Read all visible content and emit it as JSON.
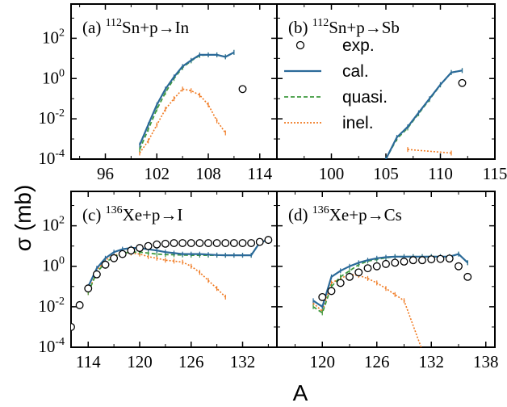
{
  "figure": {
    "ylabel": "σ (mb)",
    "xlabel": "A"
  },
  "legend": [
    {
      "key": "exp",
      "label": "exp."
    },
    {
      "key": "cal",
      "label": "cal."
    },
    {
      "key": "quasi",
      "label": "quasi."
    },
    {
      "key": "inel",
      "label": "inel."
    }
  ],
  "colors": {
    "cal": "#2b6a99",
    "quasi": "#3f9a3f",
    "inel": "#f07a22",
    "exp": "#000000"
  },
  "chart_data": [
    {
      "type": "line",
      "label": "(a)",
      "sup": "112",
      "title_rest": "Sn+p→In",
      "xlim": [
        92,
        116
      ],
      "ylog": true,
      "ylim_exp": [
        -4,
        3.7
      ],
      "xticks": [
        96,
        102,
        108,
        114
      ],
      "yticks": [
        -4,
        -2,
        0,
        2
      ],
      "series": {
        "exp": {
          "x": [
            112
          ],
          "y": [
            0.3
          ]
        },
        "cal": {
          "x": [
            100,
            101,
            102,
            103,
            104,
            105,
            106,
            107,
            108,
            109,
            110,
            111
          ],
          "y": [
            0.0005,
            0.005,
            0.05,
            0.3,
            1.2,
            4,
            8,
            15,
            15,
            15,
            12,
            20
          ]
        },
        "quasi": {
          "x": [
            100,
            101,
            102,
            103,
            104,
            105,
            106,
            107,
            108,
            109,
            110,
            111
          ],
          "y": [
            0.0003,
            0.003,
            0.03,
            0.2,
            1,
            3.5,
            7.5,
            14,
            15,
            15,
            12,
            20
          ]
        },
        "inel": {
          "x": [
            100,
            101,
            102,
            103,
            104,
            105,
            106,
            107,
            108,
            109,
            110
          ],
          "y": [
            0.0002,
            0.0008,
            0.005,
            0.03,
            0.1,
            0.3,
            0.25,
            0.15,
            0.05,
            0.008,
            0.002
          ]
        }
      }
    },
    {
      "type": "line",
      "label": "(b)",
      "sup": "112",
      "title_rest": "Sn+p→Sb",
      "xlim": [
        95,
        115
      ],
      "ylog": true,
      "ylim_exp": [
        -4,
        3.7
      ],
      "xticks": [
        100,
        105,
        110,
        115
      ],
      "yticks": [
        -4,
        -2,
        0,
        2
      ],
      "series": {
        "exp": {
          "x": [
            112
          ],
          "y": [
            0.6
          ]
        },
        "cal": {
          "x": [
            105,
            106,
            107,
            108,
            109,
            110,
            111,
            112
          ],
          "y": [
            0.0001,
            0.0012,
            0.004,
            0.02,
            0.1,
            0.5,
            2,
            2.5
          ]
        },
        "quasi": {
          "x": [
            105,
            106,
            107,
            108,
            109,
            110,
            111,
            112
          ],
          "y": [
            0.0001,
            0.001,
            0.0035,
            0.018,
            0.09,
            0.48,
            2,
            2.5
          ]
        },
        "inel": {
          "x": [
            107,
            111
          ],
          "y": [
            0.0003,
            0.0002
          ]
        }
      }
    },
    {
      "type": "line",
      "label": "(c)",
      "sup": "136",
      "title_rest": "Xe+p→I",
      "xlim": [
        112,
        136
      ],
      "ylog": true,
      "ylim_exp": [
        -4,
        3.7
      ],
      "xticks": [
        114,
        120,
        126,
        132
      ],
      "yticks": [
        -4,
        -2,
        0,
        2
      ],
      "series": {
        "exp": {
          "x": [
            112,
            113,
            114,
            115,
            116,
            117,
            118,
            119,
            120,
            121,
            122,
            123,
            124,
            125,
            126,
            127,
            128,
            129,
            130,
            131,
            132,
            133,
            134,
            135
          ],
          "y": [
            0.001,
            0.012,
            0.08,
            0.4,
            1.2,
            2.5,
            4,
            6,
            8,
            10,
            12,
            13,
            14,
            14,
            14,
            14,
            14,
            14,
            14,
            14,
            14,
            14,
            16,
            20
          ]
        },
        "cal": {
          "x": [
            114,
            115,
            116,
            117,
            118,
            119,
            120,
            121,
            122,
            123,
            124,
            125,
            126,
            127,
            128,
            129,
            130,
            131,
            132,
            133,
            134,
            135
          ],
          "y": [
            0.1,
            0.8,
            2.5,
            5,
            7,
            8,
            8,
            7,
            6,
            5,
            4.5,
            4,
            4,
            4,
            3.8,
            3.6,
            3.5,
            3.5,
            3.5,
            3.5,
            15,
            20
          ]
        },
        "quasi": {
          "x": [
            114,
            115,
            116,
            117,
            118,
            119,
            120,
            121,
            122,
            123,
            124,
            125,
            126,
            127,
            128,
            129,
            130,
            131,
            132,
            133,
            134,
            135
          ],
          "y": [
            0.05,
            0.5,
            1.5,
            3,
            4.5,
            5,
            5,
            4.5,
            4,
            3.8,
            3.7,
            3.6,
            3.5,
            3.5,
            3.5,
            3.5,
            3.5,
            3.5,
            3.5,
            3.5,
            15,
            20
          ]
        },
        "inel": {
          "x": [
            114,
            115,
            116,
            117,
            118,
            119,
            120,
            121,
            122,
            123,
            124,
            125,
            126,
            127,
            128,
            129,
            130
          ],
          "y": [
            0.05,
            0.6,
            2,
            3.5,
            4.5,
            4.5,
            4,
            3,
            2.5,
            2,
            1.8,
            1.6,
            1,
            0.5,
            0.2,
            0.08,
            0.03
          ]
        }
      }
    },
    {
      "type": "line",
      "label": "(d)",
      "sup": "136",
      "title_rest": "Xe+p→Cs",
      "xlim": [
        115,
        139
      ],
      "ylog": true,
      "ylim_exp": [
        -4,
        3.7
      ],
      "xticks": [
        120,
        126,
        132,
        138
      ],
      "yticks": [
        -4,
        -2,
        0,
        2
      ],
      "series": {
        "exp": {
          "x": [
            120,
            121,
            122,
            123,
            124,
            125,
            126,
            127,
            128,
            129,
            130,
            131,
            132,
            133,
            134,
            135,
            136
          ],
          "y": [
            0.03,
            0.06,
            0.15,
            0.3,
            0.5,
            0.8,
            1,
            1.3,
            1.5,
            1.7,
            2,
            2,
            2.2,
            2.3,
            2.4,
            1,
            0.3
          ]
        },
        "cal": {
          "x": [
            119,
            120,
            121,
            122,
            123,
            124,
            125,
            126,
            127,
            128,
            129,
            130,
            131,
            132,
            133,
            134,
            135,
            136
          ],
          "y": [
            0.02,
            0.01,
            0.3,
            0.6,
            1,
            1.5,
            2,
            2.5,
            2.8,
            3,
            3,
            3,
            3,
            3,
            3,
            3,
            4,
            1.5
          ]
        },
        "quasi": {
          "x": [
            119,
            120,
            121,
            122,
            123,
            124,
            125,
            126,
            127,
            128,
            129,
            130,
            131,
            132,
            133,
            134,
            135,
            136
          ],
          "y": [
            0.01,
            0.005,
            0.1,
            0.3,
            0.6,
            1.2,
            1.8,
            2.2,
            2.6,
            3,
            3,
            3,
            3,
            3,
            3,
            3,
            4,
            1.5
          ]
        },
        "inel": {
          "x": [
            119,
            120,
            121,
            122,
            123,
            124,
            125,
            126,
            127,
            128,
            129,
            131,
            134
          ],
          "y": [
            0.015,
            0.006,
            0.15,
            0.25,
            0.4,
            0.35,
            0.25,
            0.15,
            0.08,
            0.04,
            0.02,
            1e-05,
            1e-05
          ]
        }
      }
    }
  ]
}
